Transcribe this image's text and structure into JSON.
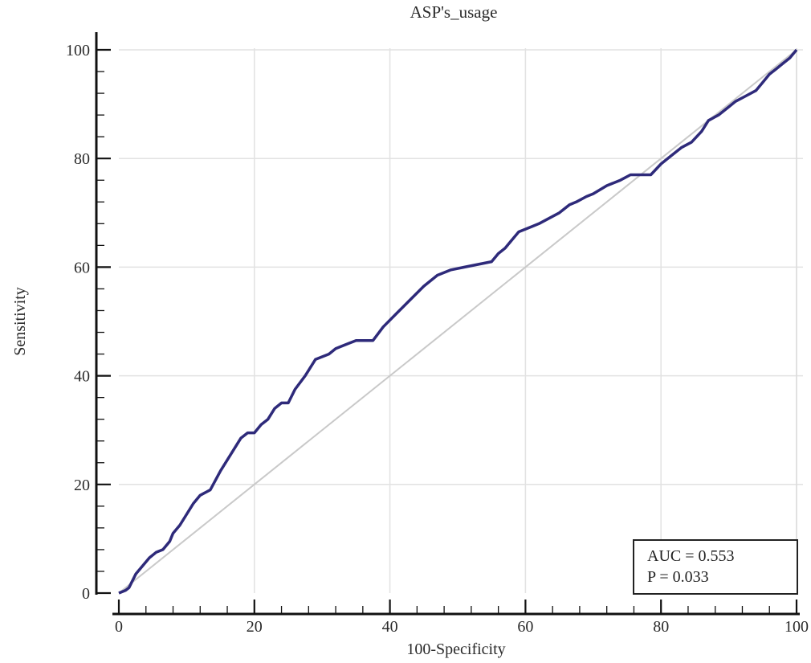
{
  "chart_data": {
    "type": "line",
    "title": "ASP's_usage",
    "xlabel": "100-Specificity",
    "ylabel": "Sensitivity",
    "xlim": [
      0,
      100
    ],
    "ylim": [
      0,
      100
    ],
    "xticks": [
      "0",
      "20",
      "40",
      "60",
      "80",
      "100"
    ],
    "yticks": [
      "0",
      "20",
      "40",
      "60",
      "80",
      "100"
    ],
    "grid": true,
    "colors": {
      "roc": "#2e2a7a",
      "reference": "#c9c9c9",
      "grid": "#e2e2e2",
      "axis": "#111111"
    },
    "series": [
      {
        "x": [
          0,
          1,
          1.5,
          2.5,
          3.5,
          4.5,
          5.5,
          6.5,
          7.5,
          8,
          9,
          10,
          11,
          12,
          13.5,
          15,
          16.5,
          18,
          19,
          20,
          21,
          22,
          23,
          24,
          25,
          26,
          27.5,
          29,
          31,
          32,
          33,
          34,
          35,
          36,
          37.5,
          39,
          41,
          43,
          45,
          47,
          49,
          51,
          53,
          55,
          56,
          57,
          58,
          59,
          60,
          61,
          62,
          63.5,
          65,
          66.5,
          67.5,
          69,
          70,
          72,
          74,
          75.5,
          77,
          78.5,
          80,
          81.5,
          83,
          84.5,
          86,
          87,
          88.5,
          90,
          91,
          92.5,
          94,
          95,
          96,
          97,
          98,
          99,
          100
        ],
        "y": [
          0,
          0.5,
          1,
          3.5,
          5,
          6.5,
          7.5,
          8,
          9.5,
          11,
          12.5,
          14.5,
          16.5,
          18,
          19,
          22.5,
          25.5,
          28.5,
          29.5,
          29.5,
          31,
          32,
          34,
          35,
          35,
          37.5,
          40,
          43,
          44,
          45,
          45.5,
          46,
          46.5,
          46.5,
          46.5,
          49,
          51.5,
          54,
          56.5,
          58.5,
          59.5,
          60,
          60.5,
          61,
          62.5,
          63.5,
          65,
          66.5,
          67,
          67.5,
          68,
          69,
          70,
          71.5,
          72,
          73,
          73.5,
          75,
          76,
          77,
          77,
          77,
          79,
          80.5,
          82,
          83,
          85,
          87,
          88,
          89.5,
          90.5,
          91.5,
          92.5,
          94,
          95.5,
          96.5,
          97.5,
          98.5,
          100
        ]
      },
      {
        "x": [
          0,
          100
        ],
        "y": [
          0,
          100
        ]
      }
    ],
    "annotations": {
      "auc": "AUC = 0.553",
      "p": "P = 0.033"
    }
  }
}
